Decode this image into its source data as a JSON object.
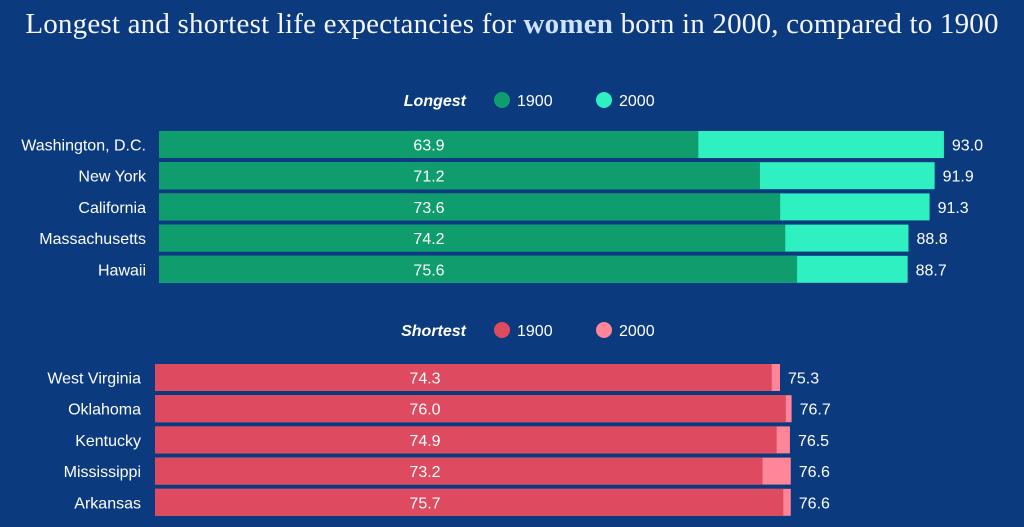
{
  "title": {
    "before": "Longest and shortest life expectancies for ",
    "highlight": "women",
    "after": " born in 2000, compared to 1900"
  },
  "chart_data": [
    {
      "type": "bar",
      "name": "Longest",
      "title": "Longest",
      "legend": [
        {
          "label": "1900",
          "color": "#0f9d6e"
        },
        {
          "label": "2000",
          "color": "#2ff0c0"
        }
      ],
      "categories": [
        "Washington, D.C.",
        "New York",
        "California",
        "Massachusetts",
        "Hawaii"
      ],
      "series": [
        {
          "name": "1900",
          "values": [
            63.9,
            71.2,
            73.6,
            74.2,
            75.6
          ]
        },
        {
          "name": "2000",
          "values": [
            93.0,
            91.9,
            91.3,
            88.8,
            88.7
          ]
        }
      ],
      "value_labels_1900": [
        "63.9",
        "71.2",
        "73.6",
        "74.2",
        "75.6"
      ],
      "value_labels_2000": [
        "93.0",
        "91.9",
        "91.3",
        "88.8",
        "88.7"
      ]
    },
    {
      "type": "bar",
      "name": "Shortest",
      "title": "Shortest",
      "legend": [
        {
          "label": "1900",
          "color": "#de4a5f"
        },
        {
          "label": "2000",
          "color": "#ff8598"
        }
      ],
      "categories": [
        "West Virginia",
        "Oklahoma",
        "Kentucky",
        "Mississippi",
        "Arkansas"
      ],
      "series": [
        {
          "name": "1900",
          "values": [
            74.3,
            76.0,
            74.9,
            73.2,
            75.7
          ]
        },
        {
          "name": "2000",
          "values": [
            75.3,
            76.7,
            76.5,
            76.6,
            76.6
          ]
        }
      ],
      "value_labels_1900": [
        "74.3",
        "76.0",
        "74.9",
        "73.2",
        "75.7"
      ],
      "value_labels_2000": [
        "75.3",
        "76.7",
        "76.5",
        "76.6",
        "76.6"
      ]
    }
  ]
}
